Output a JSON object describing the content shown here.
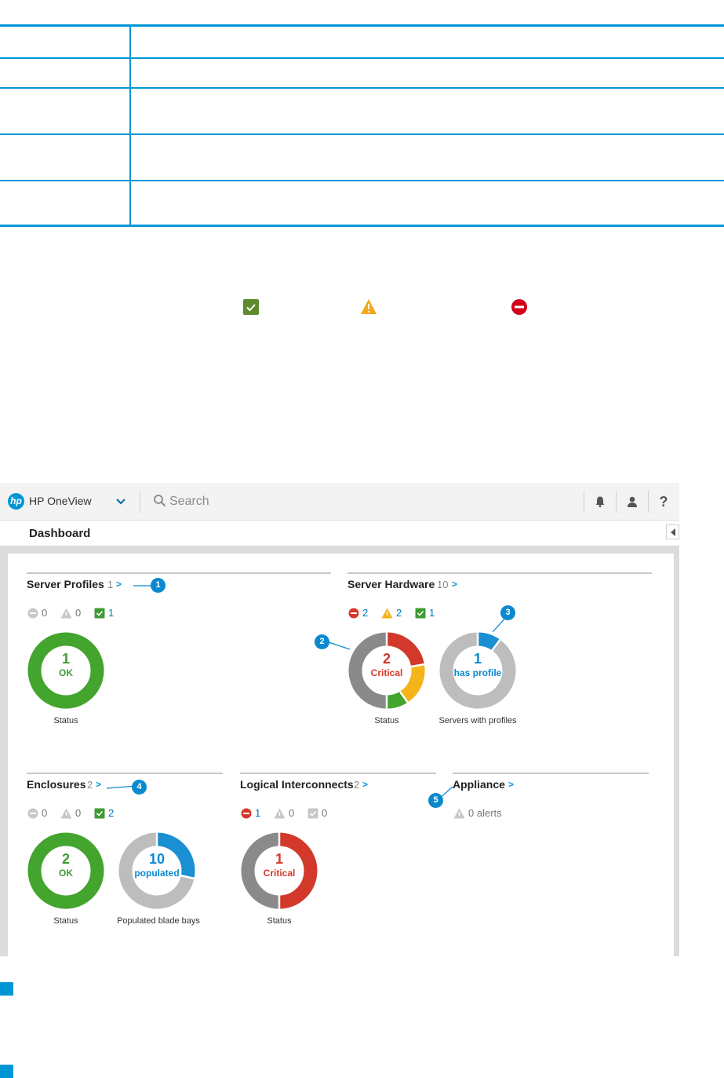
{
  "topbar": {
    "logo": "hp",
    "app_name": "HP OneView",
    "search_placeholder": "Search",
    "icons": [
      "chevron-down-icon",
      "search-icon",
      "bell-icon",
      "user-icon",
      "help-icon"
    ],
    "help_glyph": "?"
  },
  "page": {
    "title": "Dashboard"
  },
  "legend_icons": [
    "ok-icon",
    "warning-icon",
    "critical-icon"
  ],
  "widgets": {
    "server_profiles": {
      "title": "Server Profiles",
      "count": "1",
      "arrow": ">",
      "stats": {
        "critical": "0",
        "warning": "0",
        "ok": "1"
      },
      "donut": {
        "value": "1",
        "label": "OK",
        "caption": "Status"
      },
      "callout": "1"
    },
    "server_hardware": {
      "title": "Server Hardware",
      "count": "10",
      "arrow": ">",
      "stats": {
        "critical": "2",
        "warning": "2",
        "ok": "1"
      },
      "status_donut": {
        "value": "2",
        "label": "Critical",
        "caption": "Status"
      },
      "profiles_donut": {
        "value": "1",
        "label": "has profile",
        "caption": "Servers with profiles"
      },
      "callouts": [
        "2",
        "3"
      ]
    },
    "enclosures": {
      "title": "Enclosures",
      "count": "2",
      "arrow": ">",
      "stats": {
        "critical": "0",
        "warning": "0",
        "ok": "2"
      },
      "status_donut": {
        "value": "2",
        "label": "OK",
        "caption": "Status"
      },
      "bays_donut": {
        "value": "10",
        "label": "populated",
        "caption": "Populated blade bays"
      },
      "callout": "4"
    },
    "logical_interconnects": {
      "title": "Logical Interconnects",
      "count": "2",
      "arrow": ">",
      "stats": {
        "critical": "1",
        "warning": "0",
        "ok": "0"
      },
      "status_donut": {
        "value": "1",
        "label": "Critical",
        "caption": "Status"
      }
    },
    "appliance": {
      "title": "Appliance",
      "arrow": ">",
      "alerts": "0 alerts",
      "callout": "5"
    }
  },
  "colors": {
    "accent": "#0096d6",
    "ok": "#3f9c35",
    "critical": "#d3392b",
    "warning": "#f4b41a",
    "neutral_grey": "#8a8a8a",
    "light_grey": "#bfbfbf"
  }
}
